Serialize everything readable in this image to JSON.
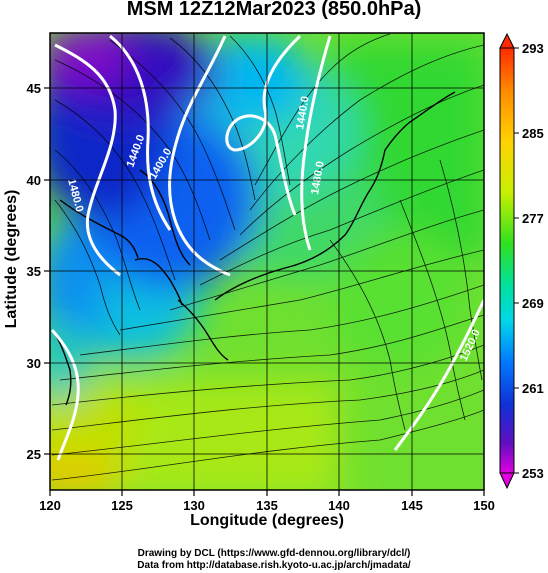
{
  "title": "MSM 12Z12Mar2023 (850.0hPa)",
  "xaxis": {
    "label": "Longitude (degrees)",
    "range": [
      120,
      150
    ],
    "ticks": [
      "120",
      "125",
      "130",
      "135",
      "140",
      "145",
      "150"
    ]
  },
  "yaxis": {
    "label": "Latitude  (degrees)",
    "range": [
      23,
      48
    ],
    "ticks": [
      "25",
      "30",
      "35",
      "40",
      "45"
    ]
  },
  "colorbar": {
    "ticks": [
      "293",
      "285",
      "277",
      "269",
      "261",
      "253"
    ],
    "range": [
      253,
      293
    ]
  },
  "contours": [
    {
      "label": "1480.0",
      "color": "#ffffff"
    },
    {
      "label": "1440.0",
      "color": "#ffffff"
    },
    {
      "label": "1400.0",
      "color": "#ffffff"
    },
    {
      "label": "1440.0",
      "color": "#ffffff"
    },
    {
      "label": "1480.0",
      "color": "#ffffff"
    },
    {
      "label": "1520.0",
      "color": "#ffffff"
    }
  ],
  "credits": {
    "line1": "Drawing by DCL (https://www.gfd-dennou.org/library/dcl/)",
    "line2": "Data from http://database.rish.kyoto-u.ac.jp/arch/jmadata/"
  }
}
